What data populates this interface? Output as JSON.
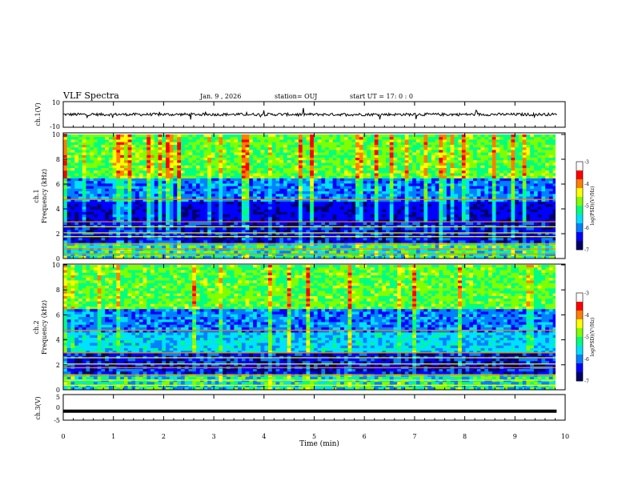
{
  "header": {
    "title": "VLF Spectra",
    "date": "Jan. 9 , 2026",
    "station": "station= OUJ",
    "start": "start UT = 17: 0 : 0"
  },
  "chart_data": [
    {
      "name": "ch1-waveform",
      "type": "line",
      "ylabel": "ch.1(V)",
      "yticklabels": [
        "10",
        "-10"
      ],
      "ylim": [
        -10,
        10
      ],
      "xlim": [
        0,
        10
      ],
      "baseline": 0,
      "color": "#000000"
    },
    {
      "name": "ch1-spectrogram",
      "type": "heatmap",
      "ylabel": "ch.1\nFrequency (kHz)",
      "ylabel_line1": "ch.1",
      "ylabel_line2": "Frequency (kHz)",
      "xlim": [
        0,
        10
      ],
      "ylim": [
        0,
        10
      ],
      "yticks": [
        0,
        2,
        4,
        6,
        8,
        10
      ],
      "data_end_min": 9.83,
      "colorbar": {
        "label": "log(PSD)(V²/Hz)",
        "ticks": [
          -3,
          -4,
          -5,
          -6,
          -7
        ],
        "range": [
          -7,
          -3
        ]
      }
    },
    {
      "name": "ch2-spectrogram",
      "type": "heatmap",
      "ylabel": "ch.2\nFrequency (kHz)",
      "ylabel_line1": "ch.2",
      "ylabel_line2": "Frequency (kHz)",
      "xlim": [
        0,
        10
      ],
      "ylim": [
        0,
        10
      ],
      "yticks": [
        0,
        2,
        4,
        6,
        8,
        10
      ],
      "data_end_min": 9.83,
      "colorbar": {
        "label": "log(PSD)(V²/Hz)",
        "ticks": [
          -3,
          -4,
          -5,
          -6,
          -7
        ],
        "range": [
          -7,
          -3
        ]
      }
    },
    {
      "name": "ch3-waveform",
      "type": "line",
      "ylabel": "ch.3(V)",
      "yticklabels": [
        "5",
        "0",
        "-5"
      ],
      "ylim": [
        -5,
        5
      ],
      "xlim": [
        0,
        10
      ],
      "baseline": -1.5,
      "color": "#000000"
    }
  ],
  "xaxis": {
    "label": "Time (min)",
    "ticks": [
      0,
      1,
      2,
      3,
      4,
      5,
      6,
      7,
      8,
      9,
      10
    ]
  },
  "colormap": [
    "#000066",
    "#0000ff",
    "#0080ff",
    "#00e0ff",
    "#00ff80",
    "#80ff00",
    "#ffff00",
    "#ff8000",
    "#ff0000",
    "#ffffff"
  ]
}
